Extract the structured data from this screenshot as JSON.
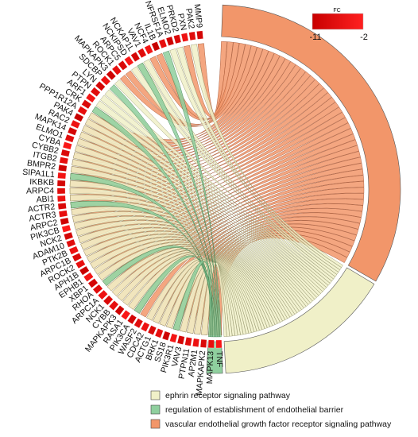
{
  "chart_data": {
    "type": "chord",
    "genes": [
      "MMP9",
      "PAK2",
      "PXN",
      "PRKD2",
      "ELMO2",
      "TNFRSF1A",
      "IL1B",
      "NCF4",
      "VAV1",
      "NCKAP1L",
      "NCKIPSD",
      "ARPC5",
      "ROCK1",
      "MAPKAPK3",
      "SDCBP",
      "LYN",
      "PTPN",
      "ARF1",
      "CRK",
      "PPP1R12A",
      "PAK4",
      "RAC2",
      "MAPK14",
      "ELMO1",
      "CYBA",
      "CYBB2",
      "ITGB2",
      "BMPR2",
      "SIPA1L1",
      "IKBKB",
      "ARPC4",
      "ABI1",
      "ACTR2",
      "ACTR3",
      "ARPC2",
      "PIK3CB",
      "NCK2",
      "ADAM10",
      "PTK2B",
      "ARPC1B",
      "ROCK2",
      "APH1B",
      "EPHB1",
      "XBP1",
      "RHOA",
      "ARPC1A",
      "NCK1",
      "CYBB",
      "MAPKAPK3",
      "RASA1",
      "PIK3CA",
      "WASF2",
      "CDC42",
      "ACTG1",
      "BRK1",
      "SS18",
      "PIK3R1",
      "VAV3",
      "PTPN11",
      "AP2M1",
      "MAPKAPK2",
      "MAPK13",
      "TNF"
    ],
    "fold_change": [
      -9,
      -7,
      -5,
      -8,
      -10,
      -6,
      -11,
      -4,
      -7,
      -9,
      -3,
      -8,
      -6,
      -10,
      -5,
      -9,
      -7,
      -4,
      -8,
      -6,
      -11,
      -5,
      -9,
      -7,
      -3,
      -8,
      -6,
      -10,
      -4,
      -9,
      -7,
      -5,
      -8,
      -6,
      -10,
      -2,
      -9,
      -7,
      -5,
      -8,
      -6,
      -11,
      -4,
      -9,
      -7,
      -5,
      -8,
      -6,
      -10,
      -3,
      -9,
      -7,
      -5,
      -8,
      -6,
      -10,
      -4,
      -9,
      -7,
      -5,
      -8,
      -6,
      -3
    ],
    "terms": [
      {
        "name": "ephrin receptor signaling pathway",
        "color": "#f0f0c8",
        "members": [
          1,
          3,
          4,
          8,
          9,
          10,
          13,
          15,
          16,
          17,
          18,
          19,
          20,
          21,
          22,
          23,
          24,
          25,
          26,
          27,
          28,
          29,
          30,
          31,
          32,
          33,
          34,
          35,
          36,
          37,
          38,
          39,
          40,
          41,
          42,
          43,
          44,
          45,
          46,
          47,
          48,
          49,
          50,
          52,
          53,
          54,
          55,
          56,
          57,
          58,
          59,
          60
        ]
      },
      {
        "name": "regulation of establishment of endothelial barrier",
        "color": "#8fcf9e",
        "members": [
          5,
          9,
          14,
          18,
          28,
          32,
          44,
          50,
          56
        ]
      },
      {
        "name": "vascular endothelial growth factor receptor signaling pathway",
        "color": "#f2966a",
        "members": [
          0,
          2,
          6,
          7,
          11,
          12,
          19,
          20,
          21,
          22,
          23,
          24,
          25,
          26,
          27,
          28,
          29,
          30,
          31,
          32,
          33,
          34,
          35,
          36,
          37,
          38,
          39,
          40,
          41,
          42,
          43,
          44,
          45,
          46,
          47,
          48,
          49,
          50,
          51,
          52,
          53,
          54,
          55,
          56,
          57,
          58,
          59,
          60,
          61,
          62
        ]
      }
    ],
    "color_scale": {
      "title": "FC",
      "min": -11,
      "max": -2,
      "min_label": "-11",
      "max_label": "-2",
      "low_color": "#d40000",
      "high_color": "#ff1a1a"
    }
  }
}
